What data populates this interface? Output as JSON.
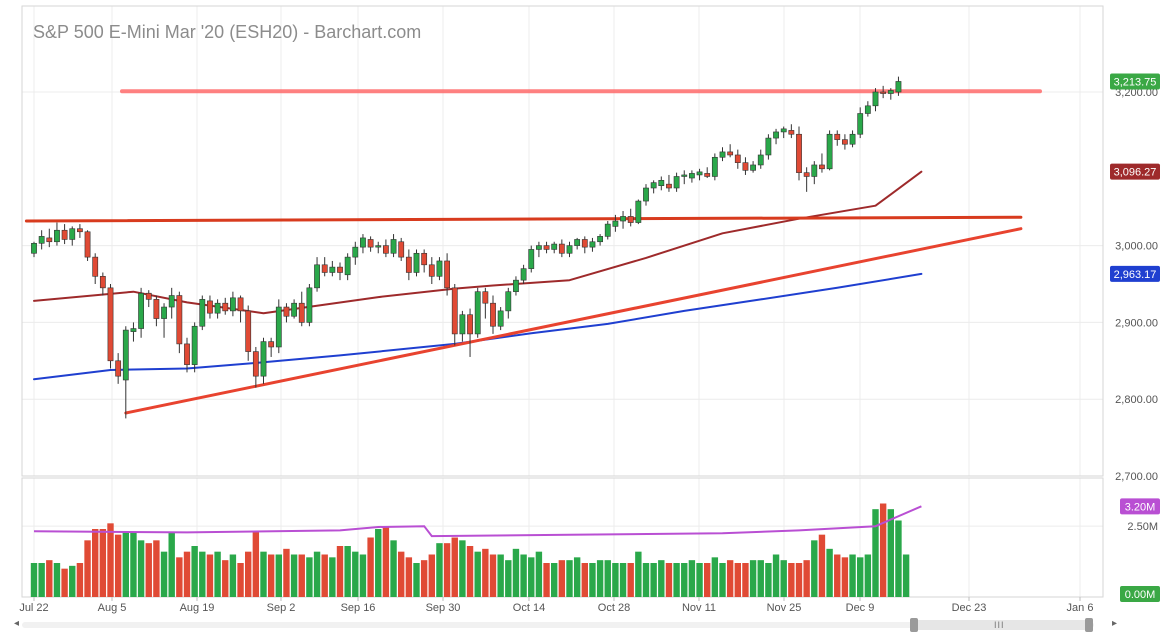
{
  "title": "S&P 500 E-Mini Mar '20 (ESH20) - Barchart.com",
  "chart_data": [
    {
      "type": "candlestick",
      "name": "price",
      "y_ticks": [
        "3,200.00",
        "3,000.00",
        "2,900.00",
        "2,800.00",
        "2,700.00"
      ],
      "y_tick_values": [
        3200,
        3000,
        2900,
        2800,
        2700
      ],
      "ylim": [
        2700,
        3250
      ],
      "x_tick_labels": [
        "Jul 22",
        "Aug 5",
        "Aug 19",
        "Sep 2",
        "Sep 16",
        "Sep 30",
        "Oct 14",
        "Oct 28",
        "Nov 11",
        "Nov 25",
        "Dec 9",
        "Dec 23",
        "Jan 6"
      ],
      "price_badges": [
        {
          "label": "3,213.75",
          "value": 3213.75,
          "color": "#3aa845"
        },
        {
          "label": "3,096.27",
          "value": 3096.27,
          "color": "#9e2a2b"
        },
        {
          "label": "2,963.17",
          "value": 2963.17,
          "color": "#1f3fd0"
        }
      ],
      "up_color": "#2aa84a",
      "down_color": "#e04a35",
      "ohlc": [
        [
          2990,
          3005,
          2985,
          3003
        ],
        [
          3003,
          3020,
          2995,
          3012
        ],
        [
          3010,
          3022,
          2998,
          3005
        ],
        [
          3005,
          3030,
          3000,
          3020
        ],
        [
          3020,
          3028,
          3002,
          3008
        ],
        [
          3008,
          3025,
          3000,
          3022
        ],
        [
          3022,
          3028,
          3010,
          3018
        ],
        [
          3018,
          3020,
          2980,
          2985
        ],
        [
          2985,
          2990,
          2950,
          2960
        ],
        [
          2960,
          2965,
          2935,
          2945
        ],
        [
          2945,
          2950,
          2840,
          2850
        ],
        [
          2850,
          2860,
          2820,
          2830
        ],
        [
          2825,
          2895,
          2775,
          2890
        ],
        [
          2888,
          2900,
          2875,
          2892
        ],
        [
          2892,
          2945,
          2880,
          2938
        ],
        [
          2938,
          2942,
          2920,
          2930
        ],
        [
          2930,
          2935,
          2895,
          2905
        ],
        [
          2905,
          2925,
          2880,
          2920
        ],
        [
          2920,
          2945,
          2905,
          2935
        ],
        [
          2935,
          2940,
          2860,
          2872
        ],
        [
          2872,
          2880,
          2835,
          2845
        ],
        [
          2845,
          2900,
          2835,
          2895
        ],
        [
          2895,
          2935,
          2890,
          2930
        ],
        [
          2928,
          2935,
          2905,
          2912
        ],
        [
          2912,
          2930,
          2905,
          2925
        ],
        [
          2925,
          2932,
          2910,
          2915
        ],
        [
          2915,
          2940,
          2908,
          2932
        ],
        [
          2932,
          2935,
          2900,
          2915
        ],
        [
          2915,
          2922,
          2850,
          2862
        ],
        [
          2862,
          2868,
          2815,
          2830
        ],
        [
          2830,
          2880,
          2820,
          2875
        ],
        [
          2875,
          2880,
          2855,
          2868
        ],
        [
          2868,
          2930,
          2860,
          2920
        ],
        [
          2920,
          2925,
          2900,
          2908
        ],
        [
          2908,
          2930,
          2905,
          2925
        ],
        [
          2925,
          2940,
          2895,
          2900
        ],
        [
          2900,
          2950,
          2895,
          2945
        ],
        [
          2945,
          2985,
          2940,
          2975
        ],
        [
          2975,
          2985,
          2960,
          2965
        ],
        [
          2965,
          2980,
          2960,
          2972
        ],
        [
          2972,
          2978,
          2955,
          2965
        ],
        [
          2962,
          2990,
          2955,
          2985
        ],
        [
          2985,
          3005,
          2975,
          2998
        ],
        [
          2998,
          3015,
          2990,
          3010
        ],
        [
          3008,
          3012,
          2992,
          2998
        ],
        [
          2998,
          3005,
          2990,
          3000
        ],
        [
          3000,
          3008,
          2985,
          2990
        ],
        [
          2990,
          3015,
          2985,
          3008
        ],
        [
          3005,
          3010,
          2980,
          2985
        ],
        [
          2985,
          2995,
          2955,
          2965
        ],
        [
          2965,
          2995,
          2960,
          2990
        ],
        [
          2990,
          2995,
          2965,
          2975
        ],
        [
          2975,
          2985,
          2950,
          2960
        ],
        [
          2960,
          2985,
          2955,
          2980
        ],
        [
          2980,
          2990,
          2935,
          2945
        ],
        [
          2945,
          2950,
          2870,
          2885
        ],
        [
          2885,
          2915,
          2875,
          2910
        ],
        [
          2910,
          2918,
          2855,
          2885
        ],
        [
          2885,
          2945,
          2880,
          2940
        ],
        [
          2940,
          2945,
          2905,
          2925
        ],
        [
          2925,
          2935,
          2885,
          2895
        ],
        [
          2895,
          2920,
          2890,
          2915
        ],
        [
          2915,
          2945,
          2905,
          2940
        ],
        [
          2940,
          2960,
          2935,
          2955
        ],
        [
          2955,
          2975,
          2950,
          2970
        ],
        [
          2970,
          3000,
          2965,
          2995
        ],
        [
          2995,
          3005,
          2985,
          3000
        ],
        [
          3000,
          3005,
          2990,
          2995
        ],
        [
          2995,
          3005,
          2990,
          3002
        ],
        [
          3002,
          3008,
          2985,
          2990
        ],
        [
          2990,
          3005,
          2985,
          3000
        ],
        [
          3000,
          3010,
          2995,
          3008
        ],
        [
          3008,
          3012,
          2990,
          2998
        ],
        [
          2998,
          3010,
          2992,
          3005
        ],
        [
          3005,
          3015,
          3000,
          3012
        ],
        [
          3012,
          3032,
          3008,
          3028
        ],
        [
          3025,
          3040,
          3018,
          3032
        ],
        [
          3032,
          3045,
          3022,
          3038
        ],
        [
          3038,
          3048,
          3025,
          3030
        ],
        [
          3030,
          3060,
          3028,
          3058
        ],
        [
          3058,
          3080,
          3052,
          3075
        ],
        [
          3075,
          3085,
          3068,
          3082
        ],
        [
          3078,
          3090,
          3072,
          3085
        ],
        [
          3080,
          3092,
          3070,
          3075
        ],
        [
          3075,
          3095,
          3070,
          3090
        ],
        [
          3090,
          3098,
          3080,
          3092
        ],
        [
          3088,
          3098,
          3082,
          3094
        ],
        [
          3092,
          3100,
          3085,
          3096
        ],
        [
          3094,
          3102,
          3088,
          3090
        ],
        [
          3090,
          3120,
          3085,
          3115
        ],
        [
          3115,
          3128,
          3110,
          3122
        ],
        [
          3122,
          3132,
          3115,
          3118
        ],
        [
          3118,
          3125,
          3100,
          3108
        ],
        [
          3108,
          3115,
          3092,
          3098
        ],
        [
          3098,
          3110,
          3095,
          3105
        ],
        [
          3105,
          3125,
          3100,
          3118
        ],
        [
          3118,
          3145,
          3112,
          3140
        ],
        [
          3140,
          3152,
          3132,
          3148
        ],
        [
          3148,
          3155,
          3140,
          3152
        ],
        [
          3150,
          3158,
          3140,
          3145
        ],
        [
          3145,
          3155,
          3085,
          3095
        ],
        [
          3095,
          3102,
          3070,
          3090
        ],
        [
          3090,
          3110,
          3080,
          3105
        ],
        [
          3105,
          3120,
          3095,
          3100
        ],
        [
          3100,
          3150,
          3098,
          3145
        ],
        [
          3145,
          3150,
          3130,
          3138
        ],
        [
          3138,
          3145,
          3125,
          3132
        ],
        [
          3132,
          3150,
          3128,
          3145
        ],
        [
          3145,
          3180,
          3140,
          3172
        ],
        [
          3172,
          3188,
          3168,
          3182
        ],
        [
          3182,
          3205,
          3175,
          3200
        ],
        [
          3200,
          3208,
          3192,
          3198
        ],
        [
          3198,
          3205,
          3190,
          3202
        ],
        [
          3200,
          3220,
          3195,
          3213.75
        ]
      ]
    },
    {
      "type": "line",
      "name": "moving-average-dark-red",
      "color": "#9e2a2b",
      "points": [
        [
          0,
          2928
        ],
        [
          13,
          2940
        ],
        [
          20,
          2926
        ],
        [
          30,
          2912
        ],
        [
          45,
          2933
        ],
        [
          55,
          2944
        ],
        [
          60,
          2948
        ],
        [
          70,
          2955
        ],
        [
          80,
          2984
        ],
        [
          90,
          3016
        ],
        [
          100,
          3035
        ],
        [
          110,
          3052
        ],
        [
          116,
          3096.27
        ]
      ]
    },
    {
      "type": "line",
      "name": "moving-average-blue",
      "color": "#1f3fd0",
      "points": [
        [
          0,
          2826
        ],
        [
          10,
          2838
        ],
        [
          20,
          2840
        ],
        [
          30,
          2848
        ],
        [
          40,
          2857
        ],
        [
          55,
          2872
        ],
        [
          65,
          2886
        ],
        [
          75,
          2898
        ],
        [
          85,
          2915
        ],
        [
          95,
          2930
        ],
        [
          105,
          2945
        ],
        [
          116,
          2963.17
        ]
      ]
    },
    {
      "type": "line",
      "name": "resistance-line-upper",
      "color": "#ff6b6b",
      "points": [
        [
          11.5,
          3201
        ],
        [
          131.5,
          3201
        ]
      ]
    },
    {
      "type": "line",
      "name": "resistance-line-middle",
      "color": "#d83b1e",
      "points": [
        [
          -1,
          3032
        ],
        [
          129,
          3037
        ]
      ]
    },
    {
      "type": "line",
      "name": "uptrend-line",
      "color": "#e8432f",
      "points": [
        [
          12,
          2782
        ],
        [
          129,
          3022
        ]
      ]
    },
    {
      "type": "bar",
      "name": "volume",
      "ylim": [
        0,
        4.2
      ],
      "y_ticks": [
        "2.50M"
      ],
      "y_tick_values": [
        2.5
      ],
      "badges": [
        {
          "label": "3.20M",
          "value": 3.2,
          "color": "#b94fd3"
        },
        {
          "label": "0.00M",
          "value": 0,
          "color": "#3aa845"
        }
      ],
      "values": [
        1.2,
        1.2,
        1.3,
        1.2,
        1.0,
        1.1,
        1.2,
        2.0,
        2.4,
        2.4,
        2.6,
        2.2,
        2.3,
        2.3,
        2.0,
        1.9,
        2.0,
        1.6,
        2.3,
        1.4,
        1.6,
        1.8,
        1.6,
        1.5,
        1.6,
        1.3,
        1.5,
        1.2,
        1.6,
        2.3,
        1.6,
        1.5,
        1.5,
        1.7,
        1.5,
        1.5,
        1.4,
        1.6,
        1.5,
        1.4,
        1.8,
        1.8,
        1.6,
        1.5,
        2.1,
        2.4,
        2.5,
        2.0,
        1.6,
        1.4,
        1.2,
        1.3,
        1.5,
        1.9,
        1.9,
        2.1,
        2.0,
        1.8,
        1.6,
        1.7,
        1.5,
        1.5,
        1.3,
        1.7,
        1.5,
        1.4,
        1.6,
        1.2,
        1.2,
        1.3,
        1.3,
        1.4,
        1.2,
        1.2,
        1.3,
        1.3,
        1.2,
        1.2,
        1.2,
        1.6,
        1.2,
        1.2,
        1.3,
        1.2,
        1.2,
        1.2,
        1.3,
        1.2,
        1.2,
        1.4,
        1.2,
        1.3,
        1.2,
        1.2,
        1.3,
        1.3,
        1.2,
        1.5,
        1.3,
        1.2,
        1.2,
        1.3,
        2.0,
        2.2,
        1.7,
        1.5,
        1.4,
        1.5,
        1.4,
        1.5,
        3.1,
        3.3,
        3.1,
        2.7,
        1.5
      ],
      "average_points": [
        [
          0,
          2.32
        ],
        [
          20,
          2.28
        ],
        [
          40,
          2.35
        ],
        [
          45,
          2.47
        ],
        [
          51,
          2.5
        ],
        [
          52,
          2.15
        ],
        [
          70,
          2.2
        ],
        [
          90,
          2.25
        ],
        [
          100,
          2.35
        ],
        [
          110,
          2.5
        ],
        [
          116,
          3.2
        ]
      ]
    }
  ]
}
